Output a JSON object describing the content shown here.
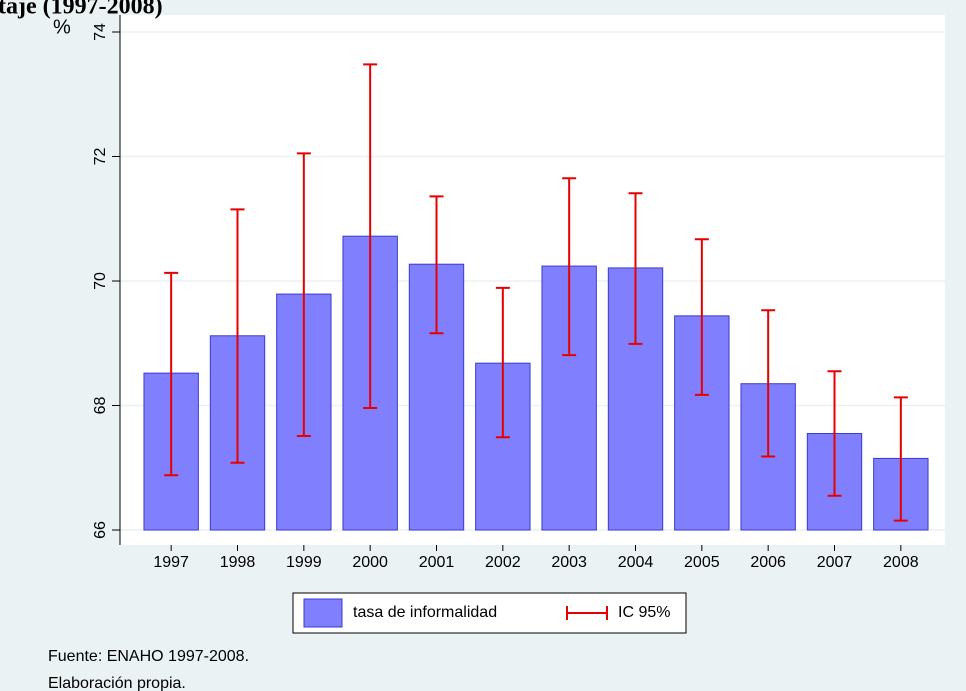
{
  "chart_data": {
    "type": "bar",
    "title": "taje (1997-2008)",
    "ylabel": "%",
    "categories": [
      "1997",
      "1998",
      "1999",
      "2000",
      "2001",
      "2002",
      "2003",
      "2004",
      "2005",
      "2006",
      "2007",
      "2008"
    ],
    "series": [
      {
        "name": "tasa de informalidad",
        "color": "#8080ff",
        "values": [
          68.52,
          69.12,
          69.79,
          70.72,
          70.27,
          68.68,
          70.24,
          70.21,
          69.44,
          68.35,
          67.55,
          67.15
        ]
      }
    ],
    "error_bars": {
      "name": "IC 95%",
      "color": "#e60000",
      "low": [
        66.88,
        67.08,
        67.51,
        67.96,
        69.16,
        67.49,
        68.81,
        68.99,
        68.17,
        67.18,
        66.55,
        66.15
      ],
      "high": [
        70.13,
        71.15,
        72.05,
        73.48,
        71.36,
        69.89,
        71.65,
        71.41,
        70.67,
        69.53,
        68.55,
        68.13
      ]
    },
    "ylim": [
      66,
      74
    ],
    "yticks": [
      66,
      68,
      70,
      72,
      74
    ],
    "grid": true,
    "notes": [
      "Fuente: ENAHO 1997-2008.",
      "Elaboración propia."
    ]
  }
}
